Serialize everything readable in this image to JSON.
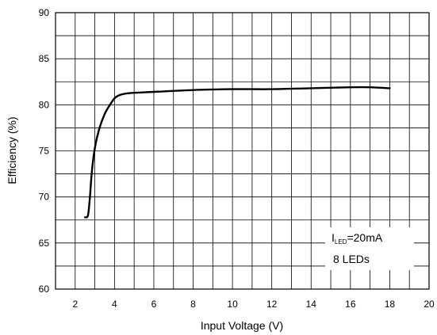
{
  "chart_data": {
    "type": "line",
    "title": "",
    "xlabel": "Input Voltage (V)",
    "ylabel": "Efficiency (%)",
    "xlim": [
      1,
      20
    ],
    "ylim": [
      60,
      90
    ],
    "xticks": [
      2,
      4,
      6,
      8,
      10,
      12,
      14,
      16,
      18,
      20
    ],
    "yticks": [
      60,
      65,
      70,
      75,
      80,
      85,
      90
    ],
    "x_minor_step": 1,
    "y_minor_step": 2.5,
    "grid": true,
    "legend": "none",
    "series": [
      {
        "x": [
          2.5,
          2.65,
          2.75,
          2.85,
          3.0,
          3.2,
          3.5,
          3.8,
          4.0,
          4.2,
          4.5,
          5.0,
          6.0,
          8.0,
          10.0,
          12.0,
          14.0,
          16.0,
          17.0,
          18.0
        ],
        "y": [
          67.8,
          68.0,
          70.0,
          72.8,
          75.3,
          77.2,
          79.0,
          80.1,
          80.7,
          81.0,
          81.2,
          81.3,
          81.4,
          81.6,
          81.7,
          81.7,
          81.8,
          81.9,
          81.9,
          81.8
        ]
      }
    ],
    "annotation": {
      "prefix": "I",
      "subscript": "LED",
      "suffix": "=20mA",
      "line2": "8 LEDs"
    }
  }
}
